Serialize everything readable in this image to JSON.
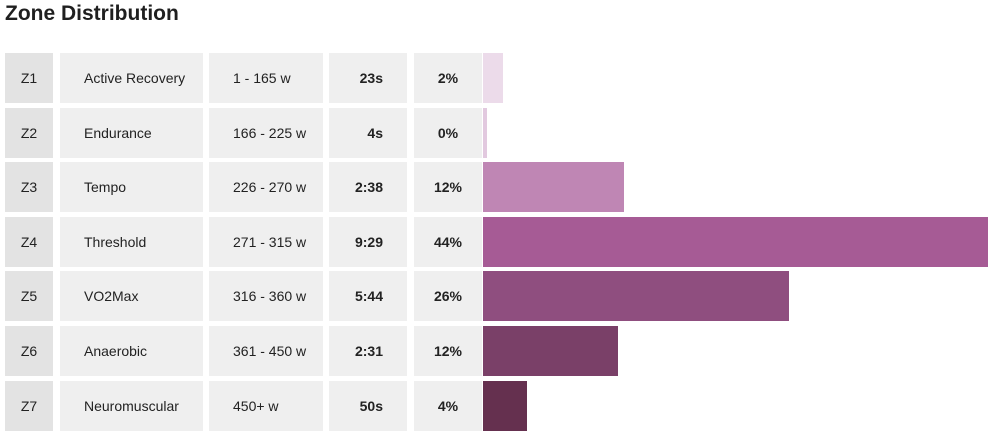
{
  "title": "Zone Distribution",
  "zones": [
    {
      "code": "Z1",
      "name": "Active Recovery",
      "range": "1 - 165 w",
      "time": "23s",
      "percent": "2%",
      "share": 0.04,
      "color": "#ecdbea"
    },
    {
      "code": "Z2",
      "name": "Endurance",
      "range": "166 - 225 w",
      "time": "4s",
      "percent": "0%",
      "share": 0.008,
      "color": "#e2c9df"
    },
    {
      "code": "Z3",
      "name": "Tempo",
      "range": "226 - 270 w",
      "time": "2:38",
      "percent": "12%",
      "share": 0.28,
      "color": "#bf86b4"
    },
    {
      "code": "Z4",
      "name": "Threshold",
      "range": "271 - 315 w",
      "time": "9:29",
      "percent": "44%",
      "share": 1.0,
      "color": "#a65b95"
    },
    {
      "code": "Z5",
      "name": "VO2Max",
      "range": "316 - 360 w",
      "time": "5:44",
      "percent": "26%",
      "share": 0.605,
      "color": "#8f4e7f"
    },
    {
      "code": "Z6",
      "name": "Anaerobic",
      "range": "361 - 450 w",
      "time": "2:31",
      "percent": "12%",
      "share": 0.268,
      "color": "#7a4068"
    },
    {
      "code": "Z7",
      "name": "Neuromuscular",
      "range": "450+ w",
      "time": "50s",
      "percent": "4%",
      "share": 0.088,
      "color": "#65304f"
    }
  ]
}
